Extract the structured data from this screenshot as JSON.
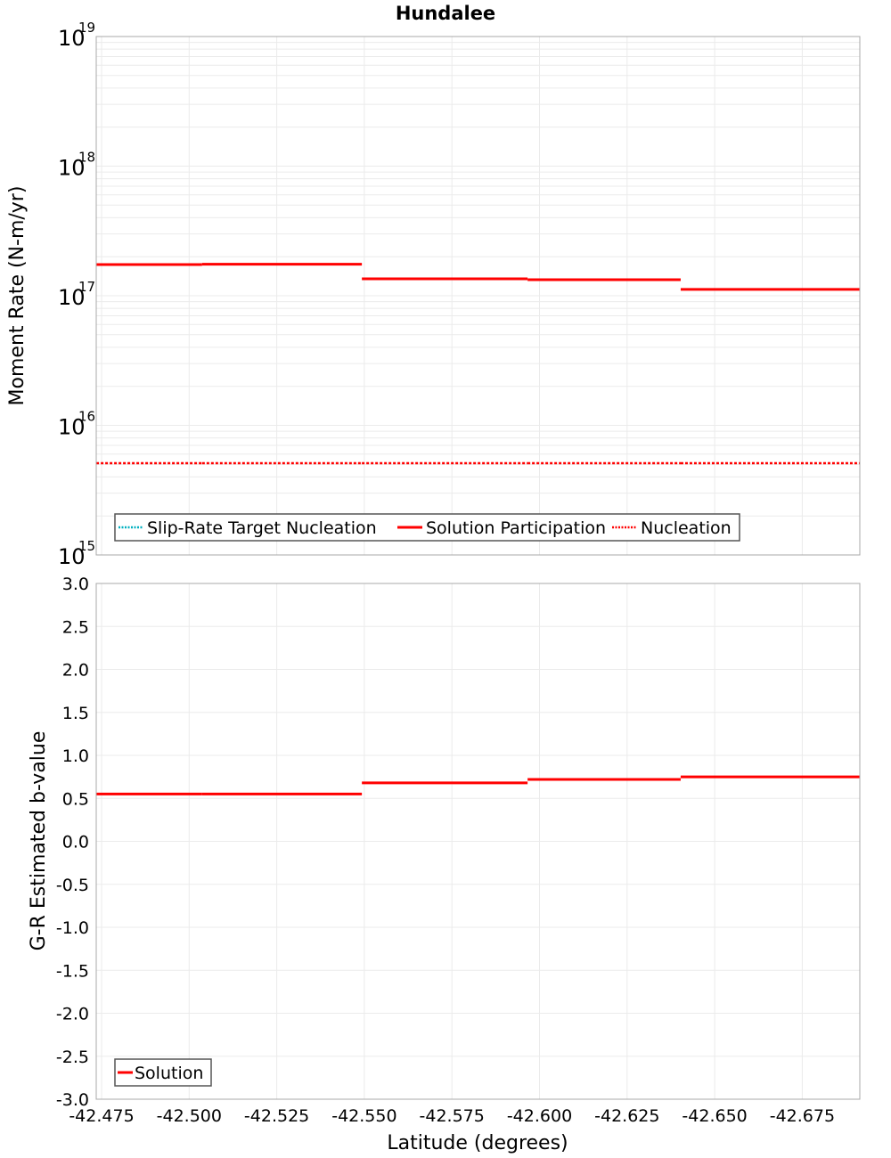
{
  "chart_data": [
    {
      "type": "line",
      "title": "Hundalee",
      "xlabel": "Latitude (degrees)",
      "ylabel": "Moment Rate (N-m/yr)",
      "yscale": "log",
      "ylim": [
        1000000000000000.0,
        1e+19
      ],
      "xlim": [
        -42.4735,
        -42.6914
      ],
      "y_ticks": [
        {
          "base": "10",
          "exp": "19",
          "value": 1e+19
        },
        {
          "base": "10",
          "exp": "18",
          "value": 1e+18
        },
        {
          "base": "10",
          "exp": "17",
          "value": 1e+17
        },
        {
          "base": "10",
          "exp": "16",
          "value": 1e+16
        },
        {
          "base": "10",
          "exp": "15",
          "value": 1000000000000000.0
        }
      ],
      "grid": true,
      "legend_position": "bottom-left inside",
      "series": [
        {
          "name": "Slip-Rate Target Nucleation",
          "color": "#00b0c0",
          "style": "dotted",
          "segments": []
        },
        {
          "name": "Solution Participation",
          "color": "#ff0000",
          "style": "solid",
          "segments": [
            {
              "x0": -42.4735,
              "x1": -42.5037,
              "y": 1.74e+17
            },
            {
              "x0": -42.5037,
              "x1": -42.5493,
              "y": 1.75e+17
            },
            {
              "x0": -42.5493,
              "x1": -42.5966,
              "y": 1.35e+17
            },
            {
              "x0": -42.5966,
              "x1": -42.6403,
              "y": 1.33e+17
            },
            {
              "x0": -42.6403,
              "x1": -42.6914,
              "y": 1.12e+17
            }
          ]
        },
        {
          "name": "Nucleation",
          "color": "#ff0000",
          "style": "dotted",
          "segments": [
            {
              "x0": -42.4735,
              "x1": -42.5037,
              "y": 5100000000000000.0
            },
            {
              "x0": -42.5037,
              "x1": -42.5493,
              "y": 5100000000000000.0
            },
            {
              "x0": -42.5493,
              "x1": -42.5966,
              "y": 5100000000000000.0
            },
            {
              "x0": -42.5966,
              "x1": -42.6403,
              "y": 5100000000000000.0
            },
            {
              "x0": -42.6403,
              "x1": -42.6914,
              "y": 5100000000000000.0
            }
          ]
        }
      ]
    },
    {
      "type": "line",
      "title": "",
      "xlabel": "Latitude (degrees)",
      "ylabel": "G-R Estimated b-value",
      "yscale": "linear",
      "ylim": [
        -3.0,
        3.0
      ],
      "xlim": [
        -42.4735,
        -42.6914
      ],
      "y_ticks": [
        "3.0",
        "2.5",
        "2.0",
        "1.5",
        "1.0",
        "0.5",
        "0.0",
        "-0.5",
        "-1.0",
        "-1.5",
        "-2.0",
        "-2.5",
        "-3.0"
      ],
      "x_ticks": [
        "-42.475",
        "-42.500",
        "-42.525",
        "-42.550",
        "-42.575",
        "-42.600",
        "-42.625",
        "-42.650",
        "-42.675"
      ],
      "grid": true,
      "legend_position": "bottom-left inside",
      "series": [
        {
          "name": "Solution",
          "color": "#ff0000",
          "style": "solid",
          "segments": [
            {
              "x0": -42.4735,
              "x1": -42.5037,
              "y": 0.55
            },
            {
              "x0": -42.5037,
              "x1": -42.5493,
              "y": 0.55
            },
            {
              "x0": -42.5493,
              "x1": -42.5966,
              "y": 0.68
            },
            {
              "x0": -42.5966,
              "x1": -42.6403,
              "y": 0.72
            },
            {
              "x0": -42.6403,
              "x1": -42.6914,
              "y": 0.75
            }
          ]
        }
      ]
    }
  ]
}
